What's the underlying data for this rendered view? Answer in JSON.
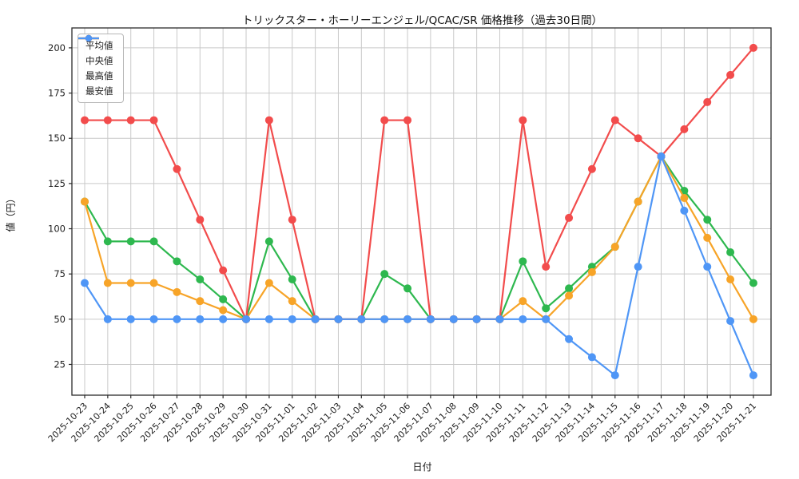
{
  "chart_data": {
    "type": "line",
    "title": "トリックスター・ホーリーエンジェル/QCAC/SR 価格推移（過去30日間）",
    "xlabel": "日付",
    "ylabel": "値（円）",
    "grid": true,
    "legend_position": "upper-left",
    "y_ticks": [
      25,
      50,
      75,
      100,
      125,
      150,
      175,
      200
    ],
    "ylim": [
      8,
      211
    ],
    "categories": [
      "2025-10-23",
      "2025-10-24",
      "2025-10-25",
      "2025-10-26",
      "2025-10-27",
      "2025-10-28",
      "2025-10-29",
      "2025-10-30",
      "2025-10-31",
      "2025-11-01",
      "2025-11-02",
      "2025-11-03",
      "2025-11-04",
      "2025-11-05",
      "2025-11-06",
      "2025-11-07",
      "2025-11-08",
      "2025-11-09",
      "2025-11-10",
      "2025-11-11",
      "2025-11-12",
      "2025-11-13",
      "2025-11-14",
      "2025-11-15",
      "2025-11-16",
      "2025-11-17",
      "2025-11-18",
      "2025-11-19",
      "2025-11-20",
      "2025-11-21"
    ],
    "series": [
      {
        "name": "平均値",
        "color": "#2eb84f",
        "values": [
          115,
          93,
          93,
          93,
          82,
          72,
          61,
          50,
          93,
          72,
          50,
          50,
          50,
          75,
          67,
          50,
          50,
          50,
          50,
          82,
          56,
          67,
          79,
          90,
          115,
          140,
          121,
          105,
          87,
          70
        ]
      },
      {
        "name": "中央値",
        "color": "#f7a428",
        "values": [
          115,
          70,
          70,
          70,
          65,
          60,
          55,
          50,
          70,
          60,
          50,
          50,
          50,
          50,
          50,
          50,
          50,
          50,
          50,
          60,
          50,
          63,
          76,
          90,
          115,
          140,
          117,
          95,
          72,
          50
        ]
      },
      {
        "name": "最高値",
        "color": "#f24c4c",
        "values": [
          160,
          160,
          160,
          160,
          133,
          105,
          77,
          50,
          160,
          105,
          50,
          50,
          50,
          160,
          160,
          50,
          50,
          50,
          50,
          160,
          79,
          106,
          133,
          160,
          150,
          140,
          155,
          170,
          185,
          200
        ]
      },
      {
        "name": "最安値",
        "color": "#4f96f6",
        "values": [
          70,
          50,
          50,
          50,
          50,
          50,
          50,
          50,
          50,
          50,
          50,
          50,
          50,
          50,
          50,
          50,
          50,
          50,
          50,
          50,
          50,
          39,
          29,
          19,
          79,
          140,
          110,
          79,
          49,
          19
        ]
      }
    ],
    "colors": {
      "grid": "#c9c9c9",
      "spine": "#2b2b2b",
      "tick_text": "#1f1f1f"
    }
  }
}
